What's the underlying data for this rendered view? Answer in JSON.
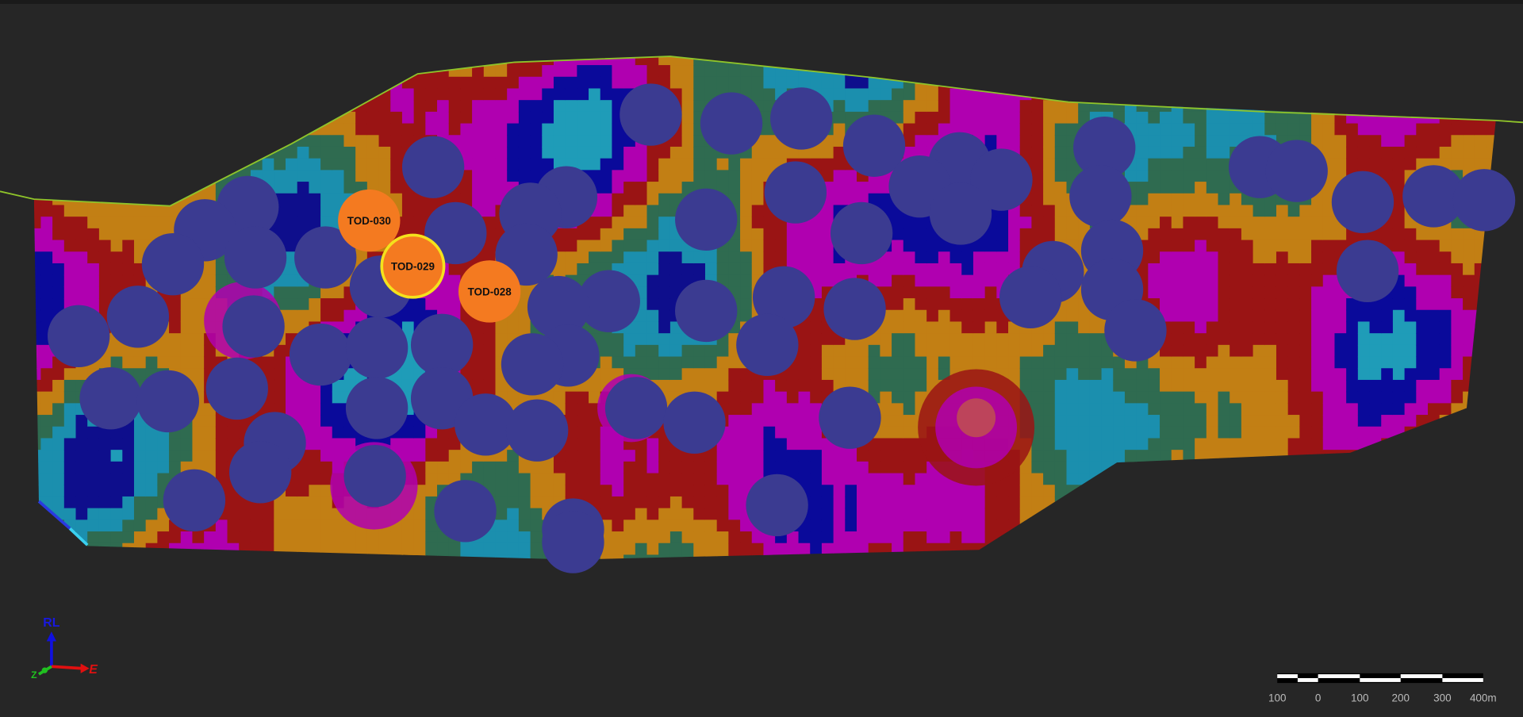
{
  "drill_holes": [
    {
      "label": "TOD-030"
    },
    {
      "label": "TOD-029"
    },
    {
      "label": "TOD-028"
    }
  ],
  "axes_widget": {
    "up": "RL",
    "east": "E",
    "north": "Z"
  },
  "scale_bar": {
    "labels": [
      "100",
      "0",
      "100",
      "200",
      "300",
      "400m"
    ]
  }
}
